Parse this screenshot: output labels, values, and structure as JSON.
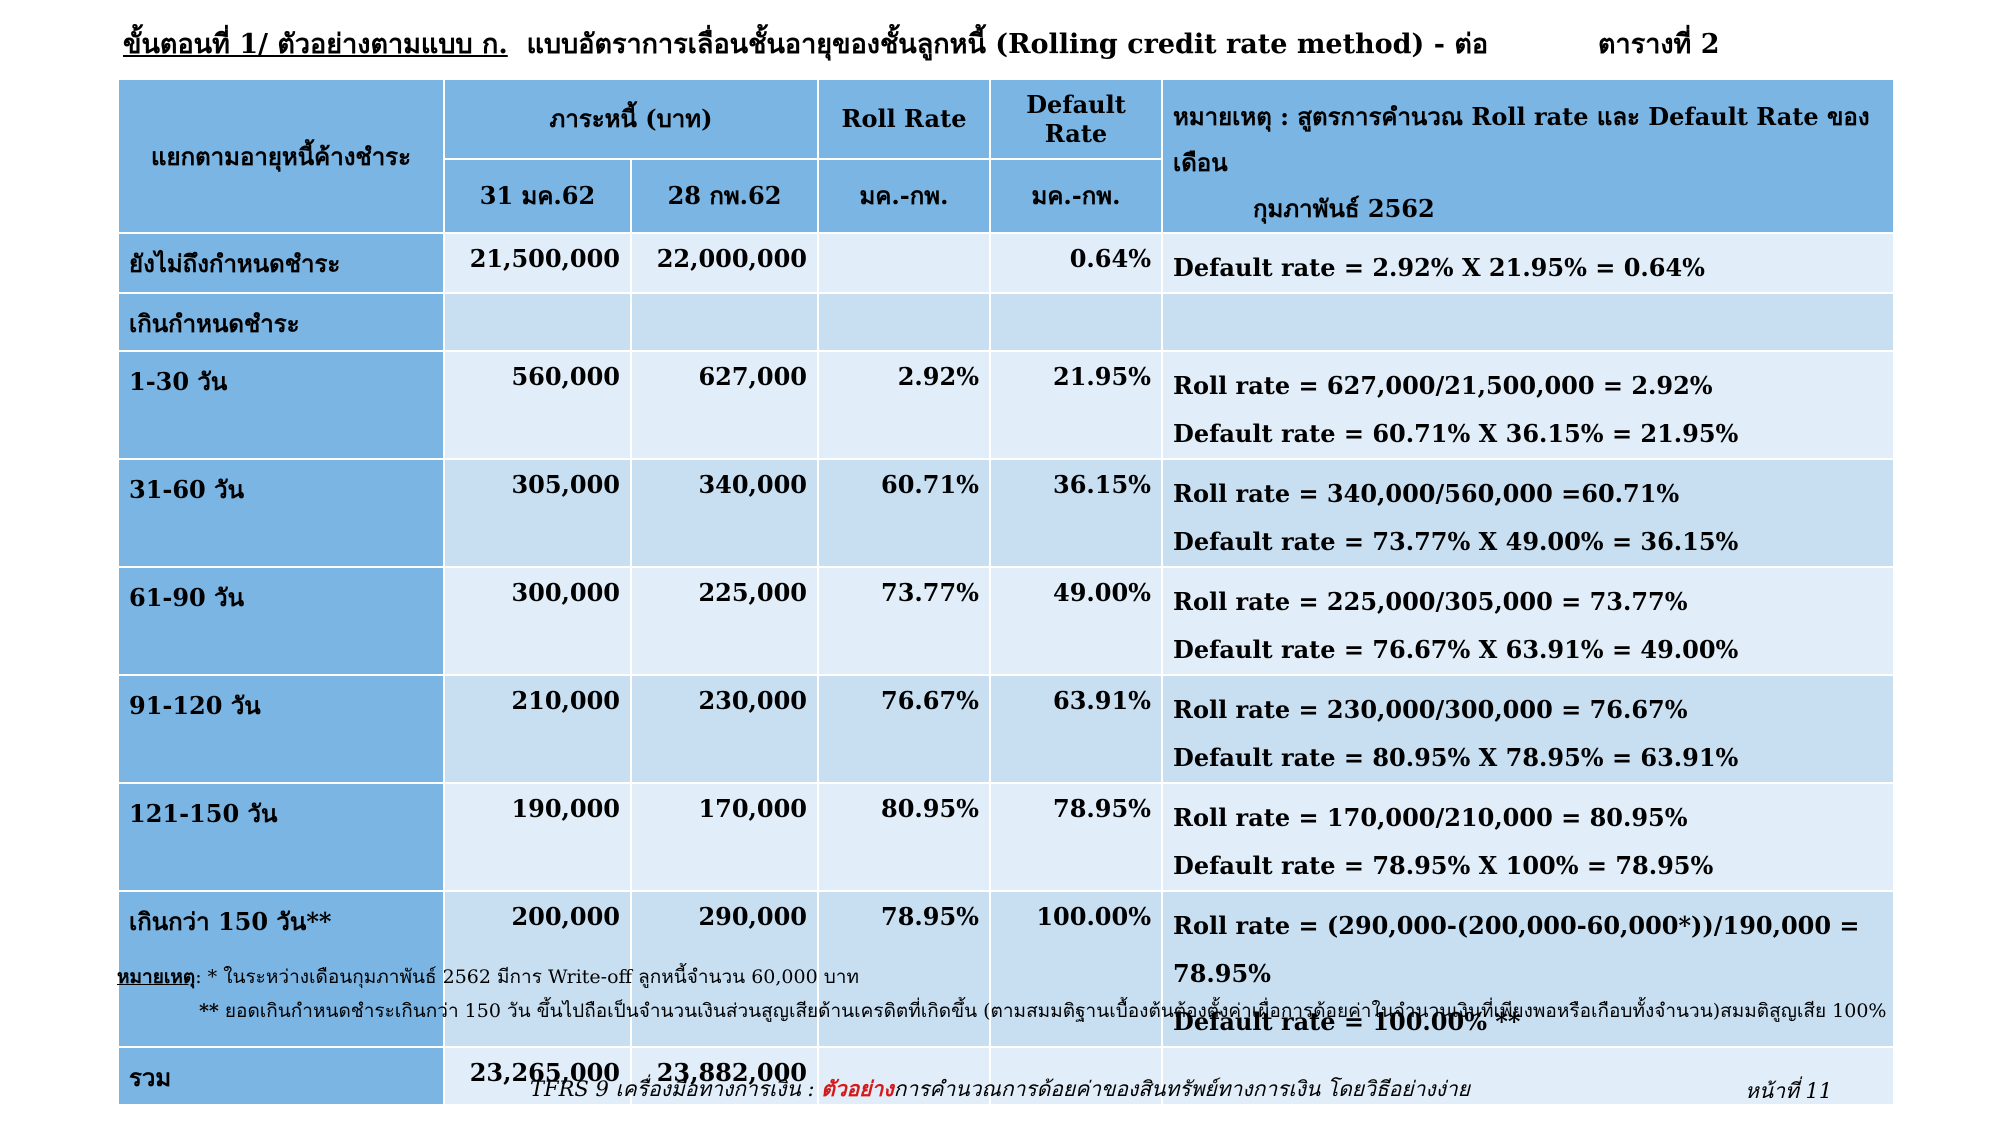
{
  "title": {
    "part1": "ขั้นตอนที่ 1/ ตัวอย่างตามแบบ ก.",
    "part2": "แบบอัตราการเลื่อนชั้นอายุของชั้นลูกหนี้ (Rolling credit rate method) - ต่อ",
    "table_label": "ตารางที่ 2"
  },
  "header": {
    "group_label": "แยกตามอายุหนี้ค้างชำระ",
    "balance_label": "ภาระหนี้ (บาท)",
    "date1": "31 มค.62",
    "date2": "28 กพ.62",
    "roll_rate_label": "Roll Rate",
    "roll_rate_period": "มค.-กพ.",
    "default_rate_label": "Default Rate",
    "default_rate_period": "มค.-กพ.",
    "note_line1": "หมายเหตุ : สูตรการคำนวณ Roll rate และ Default Rate ของเดือน",
    "note_line2": "กุมภาพันธ์ 2562"
  },
  "rows": [
    {
      "label": "ยังไม่ถึงกำหนดชำระ",
      "jan": "21,500,000",
      "feb": "22,000,000",
      "roll": "",
      "default": "0.64%",
      "note1": "Default rate = 2.92% X 21.95% = 0.64%",
      "note2": ""
    },
    {
      "label": "เกินกำหนดชำระ",
      "jan": "",
      "feb": "",
      "roll": "",
      "default": "",
      "note1": "",
      "note2": ""
    },
    {
      "label": "1-30 วัน",
      "jan": "560,000",
      "feb": "627,000",
      "roll": "2.92%",
      "default": "21.95%",
      "note1": "Roll rate = 627,000/21,500,000 = 2.92%",
      "note2": "Default rate = 60.71% X 36.15% =  21.95%"
    },
    {
      "label": "31-60 วัน",
      "jan": "305,000",
      "feb": "340,000",
      "roll": "60.71%",
      "default": "36.15%",
      "note1": "Roll rate = 340,000/560,000 =60.71%",
      "note2": "Default rate = 73.77% X 49.00% = 36.15%"
    },
    {
      "label": "61-90 วัน",
      "jan": "300,000",
      "feb": "225,000",
      "roll": "73.77%",
      "default": "49.00%",
      "note1": "Roll rate = 225,000/305,000 = 73.77%",
      "note2": "Default rate = 76.67% X 63.91% = 49.00%"
    },
    {
      "label": "91-120 วัน",
      "jan": "210,000",
      "feb": "230,000",
      "roll": "76.67%",
      "default": "63.91%",
      "note1": "Roll rate = 230,000/300,000 = 76.67%",
      "note2": "Default rate = 80.95% X 78.95% = 63.91%"
    },
    {
      "label": "121-150 วัน",
      "jan": "190,000",
      "feb": "170,000",
      "roll": "80.95%",
      "default": "78.95%",
      "note1": "Roll rate = 170,000/210,000 = 80.95%",
      "note2": "Default rate = 78.95% X 100% = 78.95%"
    },
    {
      "label": "เกินกว่า 150 วัน**",
      "jan": "200,000",
      "feb": "290,000",
      "roll": "78.95%",
      "default": "100.00%",
      "note1": "Roll rate = (290,000-(200,000-60,000*))/190,000 = 78.95%",
      "note2": "Default rate = 100.00% **"
    },
    {
      "label": "รวม",
      "jan": "23,265,000",
      "feb": "23,882,000",
      "roll": "",
      "default": "",
      "note1": "",
      "note2": ""
    }
  ],
  "footnotes": {
    "label": "หมายเหตุ",
    "line1": ": * ในระหว่างเดือนกุมภาพันธ์ 2562 มีการ Write-off  ลูกหนี้จำนวน 60,000 บาท",
    "marker2": "**",
    "line2": " ยอดเกินกำหนดชำระเกินกว่า 150 วัน ขึ้นไปถือเป็นจำนวนเงินส่วนสูญเสียด้านเครดิตที่เกิดขึ้น (ตามสมมติฐานเบื้องต้นต้องตั้งค่าเผื่อการด้อยค่าในจำนวนเงินที่เพียงพอหรือเกือบทั้งจำนวน)สมมติสูญเสีย 100%"
  },
  "footer": {
    "prefix": "TFRS 9 เครื่องมือทางการเงิน : ",
    "highlight": "ตัวอย่าง",
    "suffix": "การคำนวณการด้อยค่าของสินทรัพย์ทางการเงิน โดยวิธีอย่างง่าย",
    "page_label": "หน้าที่  11"
  }
}
